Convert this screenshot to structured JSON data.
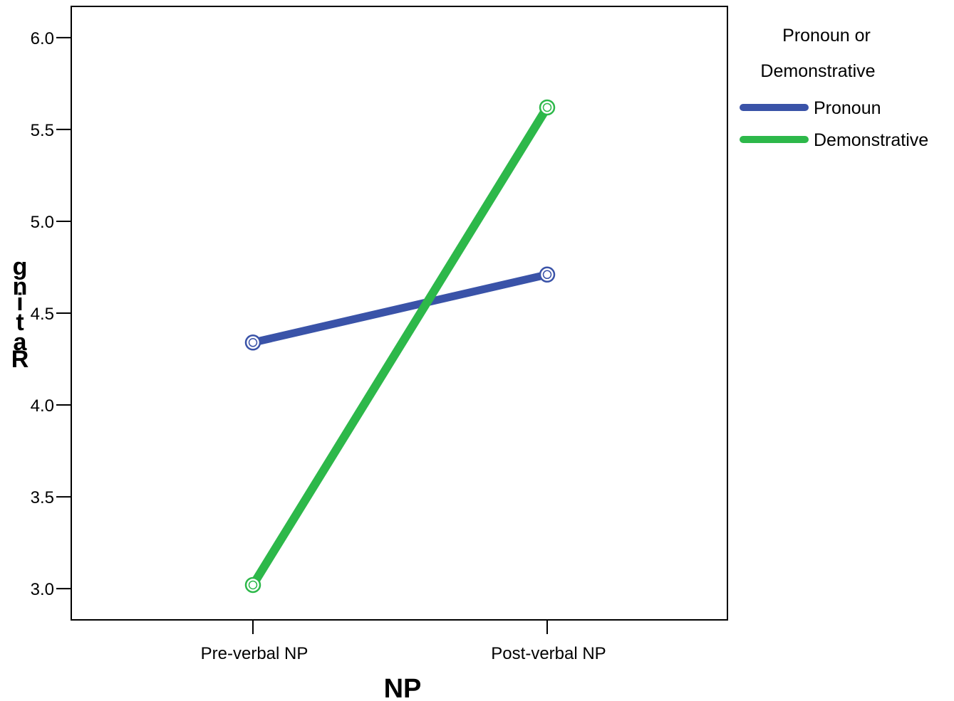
{
  "chart_data": {
    "type": "line",
    "xlabel": "NP",
    "ylabel": "Rating",
    "categories": [
      "Pre-verbal NP",
      "Post-verbal NP"
    ],
    "ylim": [
      2.83,
      6.17
    ],
    "yticks": [
      "3.0",
      "3.5",
      "4.0",
      "4.5",
      "5.0",
      "5.5",
      "6.0"
    ],
    "legend": {
      "title_lines": [
        "Pronoun or",
        "Demonstrative"
      ],
      "placement": "right-outside"
    },
    "series": [
      {
        "name": "Pronoun",
        "values": [
          4.34,
          4.71
        ],
        "color": "#3a53a8"
      },
      {
        "name": "Demonstrative",
        "values": [
          3.02,
          5.62
        ],
        "color": "#2db84a"
      }
    ],
    "grid": false
  }
}
